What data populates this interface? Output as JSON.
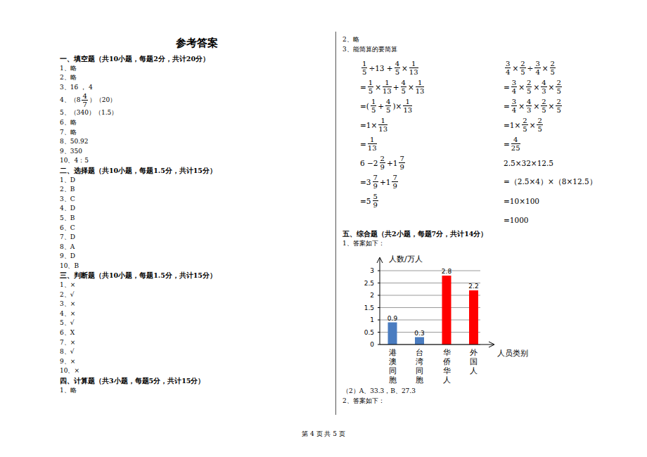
{
  "header": {
    "title": "参考答案"
  },
  "sections": [
    {
      "heading": "一、填空题（共10小题，每题2分，共计20分）",
      "items": [
        "1、略",
        "2、略",
        "3、16 ， 4",
        [
          "4、（",
          {
            "w": "8",
            "n": "4",
            "d": "7"
          },
          "）（20）"
        ],
        "5、（340）（1.5）",
        "6、略",
        "7、略",
        "8、50.92",
        "9、350",
        "10、4：5"
      ]
    },
    {
      "heading": "二、选择题（共10小题，每题1.5分，共计15分）",
      "items": [
        "1、D",
        "2、B",
        "3、C",
        "4、D",
        "5、B",
        "6、C",
        "7、D",
        "8、A",
        "9、D",
        "10、B"
      ]
    },
    {
      "heading": "三、判断题（共10小题，每题1.5分，共计15分）",
      "items": [
        "1、×",
        "2、√",
        "3、×",
        "4、×",
        "5、√",
        "6、X",
        "7、×",
        "8、√",
        "9、×",
        "10、×"
      ]
    },
    {
      "heading": "四、计算题（共3小题，每题5分，共计15分）",
      "items": [
        "1、略"
      ]
    }
  ],
  "right": {
    "items": [
      "2、略",
      "3、能简算的要简算"
    ],
    "calc_left": [
      [
        {
          "n": "1",
          "d": "5"
        },
        "÷13 + ",
        {
          "n": "4",
          "d": "5"
        },
        "×",
        {
          "n": "1",
          "d": "13"
        }
      ],
      [
        "=",
        {
          "n": "1",
          "d": "5"
        },
        "×",
        {
          "n": "1",
          "d": "13"
        },
        "+",
        {
          "n": "4",
          "d": "5"
        },
        "×",
        {
          "n": "1",
          "d": "13"
        }
      ],
      [
        "=(",
        {
          "n": "1",
          "d": "5"
        },
        "+",
        {
          "n": "4",
          "d": "5"
        },
        ")×",
        {
          "n": "1",
          "d": "13"
        }
      ],
      [
        "=1×",
        {
          "n": "1",
          "d": "13"
        }
      ],
      [
        "=",
        {
          "n": "1",
          "d": "13"
        }
      ],
      [
        "6 − ",
        {
          "w": "2",
          "n": "2",
          "d": "9"
        },
        "+",
        {
          "w": "1",
          "n": "7",
          "d": "9"
        }
      ],
      [
        "=",
        {
          "w": "3",
          "n": "7",
          "d": "9"
        },
        "+",
        {
          "w": "1",
          "n": "7",
          "d": "9"
        }
      ],
      [
        "=",
        {
          "w": "5",
          "n": "5",
          "d": "9"
        }
      ]
    ],
    "calc_right": [
      [
        {
          "n": "3",
          "d": "4"
        },
        "×",
        {
          "n": "2",
          "d": "5"
        },
        "÷",
        {
          "n": "3",
          "d": "4"
        },
        "×",
        {
          "n": "2",
          "d": "5"
        }
      ],
      [
        "=",
        {
          "n": "3",
          "d": "4"
        },
        "×",
        {
          "n": "2",
          "d": "5"
        },
        "×",
        {
          "n": "4",
          "d": "3"
        },
        "×",
        {
          "n": "2",
          "d": "5"
        }
      ],
      [
        "=",
        {
          "n": "3",
          "d": "4"
        },
        "×",
        {
          "n": "4",
          "d": "3"
        },
        "×",
        {
          "n": "2",
          "d": "5"
        },
        "×",
        {
          "n": "2",
          "d": "5"
        }
      ],
      [
        "=1×",
        {
          "n": "2",
          "d": "5"
        },
        "×",
        {
          "n": "2",
          "d": "5"
        }
      ],
      [
        "=",
        {
          "n": "4",
          "d": "25"
        }
      ],
      "2.5×32×12.5",
      "=（2.5×4）×（8×12.5）",
      "=10×100",
      "=1000"
    ]
  },
  "section5": {
    "heading": "五、综合题（共2小题，每题7分，共计14分）",
    "items_before": [
      "1、答案如下："
    ],
    "items_after": [
      "（2）A、33.3，B、27.3",
      "2、答案如下："
    ]
  },
  "chart_data": {
    "type": "bar",
    "y_label": "人数/万人",
    "x_label": "人员类别",
    "categories": [
      "港澳同胞",
      "台湾同胞",
      "华侨华人",
      "外国人"
    ],
    "values": [
      0.9,
      0.3,
      2.8,
      2.2
    ],
    "colors": [
      "#4a7cc0",
      "#4a7cc0",
      "#ff0000",
      "#ff0000"
    ],
    "ylim": [
      0,
      3
    ],
    "yticks": [
      0,
      0.5,
      1,
      1.5,
      2,
      2.5,
      3
    ],
    "grid": true,
    "data_labels": true
  },
  "footer": "第 4 页 共 5 页"
}
